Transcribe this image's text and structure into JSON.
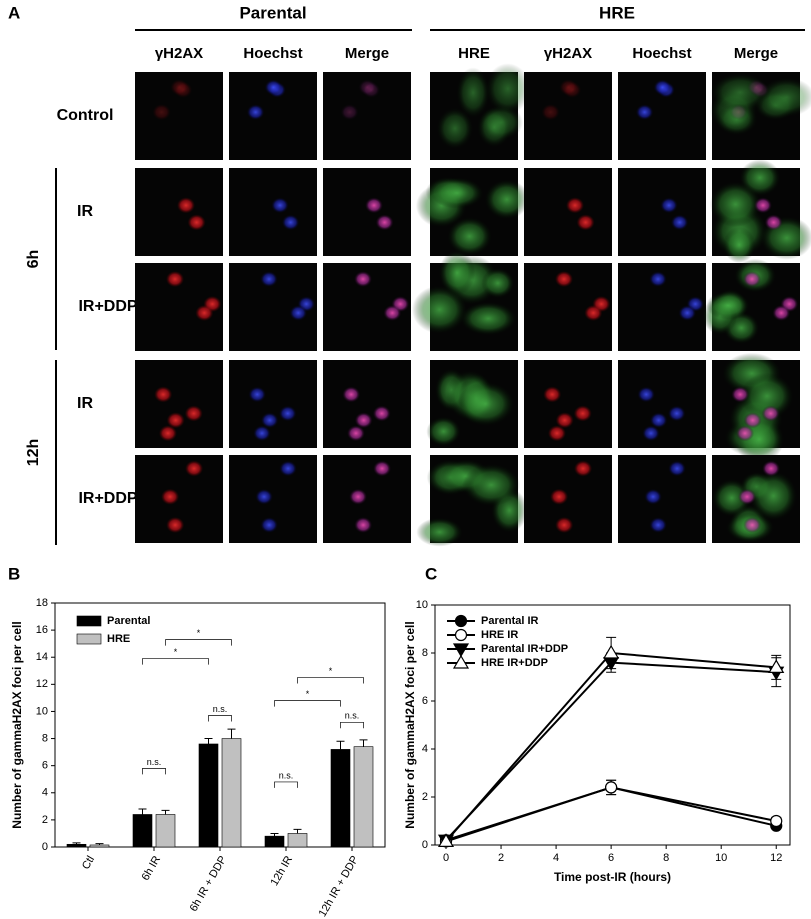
{
  "panel_a": {
    "label": "A",
    "groups": [
      "Parental",
      "HRE"
    ],
    "columns": [
      "γH2AX",
      "Hoechst",
      "Merge",
      "HRE",
      "γH2AX",
      "Hoechst",
      "Merge"
    ],
    "row_labels": [
      "Control",
      "IR",
      "IR+DDP",
      "IR",
      "IR+DDP"
    ],
    "time_labels": [
      "6h",
      "12h"
    ]
  },
  "chart_data": [
    {
      "type": "bar",
      "label": "B",
      "ylabel": "Number of gammaH2AX foci per cell",
      "categories": [
        "Ctl",
        "6h IR",
        "6h IR + DDP",
        "12h IR",
        "12h IR + DDP"
      ],
      "series": [
        {
          "name": "Parental",
          "color": "#000000",
          "values": [
            0.2,
            2.4,
            7.6,
            0.8,
            7.2
          ],
          "errors": [
            0.1,
            0.4,
            0.4,
            0.2,
            0.6
          ]
        },
        {
          "name": "HRE",
          "color": "#c0c0c0",
          "values": [
            0.15,
            2.4,
            8.0,
            1.0,
            7.4
          ],
          "errors": [
            0.1,
            0.3,
            0.7,
            0.3,
            0.5
          ]
        }
      ],
      "ylim": [
        0,
        18
      ],
      "yticks": [
        0,
        2,
        4,
        6,
        8,
        10,
        12,
        14,
        16,
        18
      ],
      "legend": "upper left",
      "annotations": [
        "n.s.",
        "*",
        "*",
        "n.s.",
        "n.s.",
        "*",
        "*",
        "n.s."
      ]
    },
    {
      "type": "line",
      "label": "C",
      "xlabel": "Time post-IR (hours)",
      "ylabel": "Number of gammaH2AX foci per cell",
      "x": [
        0,
        6,
        12
      ],
      "series": [
        {
          "name": "Parental IR",
          "color": "#000000",
          "marker": "circle",
          "filled": true,
          "values": [
            0.2,
            2.4,
            0.8
          ],
          "errors": [
            0.05,
            0.3,
            0.1
          ]
        },
        {
          "name": "HRE IR",
          "color": "#000000",
          "marker": "circle",
          "filled": false,
          "values": [
            0.15,
            2.4,
            1.0
          ],
          "errors": [
            0.05,
            0.3,
            0.15
          ]
        },
        {
          "name": "Parental IR+DDP",
          "color": "#000000",
          "marker": "triangle-down",
          "filled": true,
          "values": [
            0.2,
            7.6,
            7.2
          ],
          "errors": [
            0.05,
            0.4,
            0.6
          ]
        },
        {
          "name": "HRE IR+DDP",
          "color": "#000000",
          "marker": "triangle-up",
          "filled": false,
          "values": [
            0.15,
            8.0,
            7.4
          ],
          "errors": [
            0.05,
            0.65,
            0.5
          ]
        }
      ],
      "xlim": [
        -0.4,
        12.5
      ],
      "xticks": [
        0,
        2,
        4,
        6,
        8,
        10,
        12
      ],
      "ylim": [
        0,
        10
      ],
      "yticks": [
        0,
        2,
        4,
        6,
        8,
        10
      ],
      "legend": "upper left"
    }
  ]
}
